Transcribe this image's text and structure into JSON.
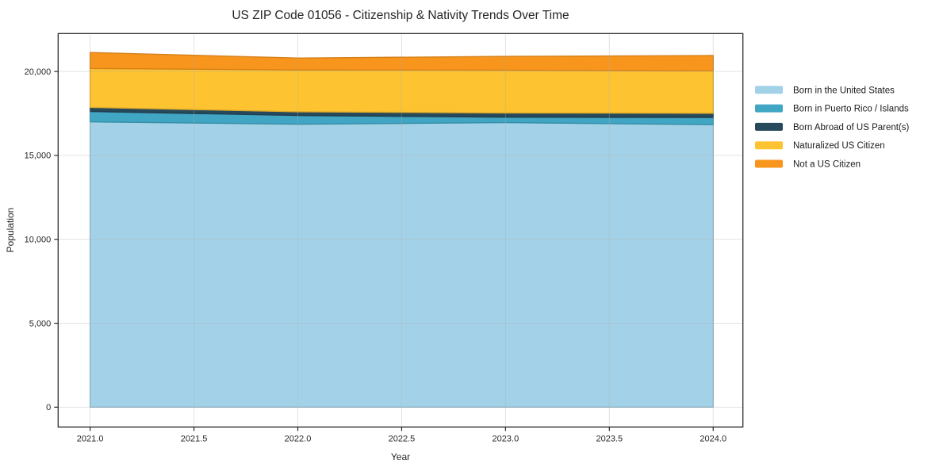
{
  "page": {
    "title": "US ZIP Code 01056 - Citizenship & Nativity Trends Over Time"
  },
  "chart_data": {
    "type": "area",
    "stacked": true,
    "title": "US ZIP Code 01056 - Citizenship & Nativity Trends Over Time",
    "xlabel": "Year",
    "ylabel": "Population",
    "x": [
      2021,
      2022,
      2023,
      2024
    ],
    "series": [
      {
        "name": "Born in the United States",
        "color": "#a3d2e8",
        "values": [
          17000,
          16860,
          16960,
          16830
        ]
      },
      {
        "name": "Born in Puerto Rico / Islands",
        "color": "#40a6c3",
        "values": [
          620,
          520,
          320,
          430
        ]
      },
      {
        "name": "Born Abroad of US Parent(s)",
        "color": "#26495c",
        "values": [
          240,
          220,
          250,
          250
        ]
      },
      {
        "name": "Naturalized US Citizen",
        "color": "#fdc330",
        "values": [
          2320,
          2490,
          2550,
          2530
        ]
      },
      {
        "name": "Not a US Citizen",
        "color": "#f8951d",
        "values": [
          950,
          710,
          820,
          910
        ]
      }
    ],
    "stacked_totals": [
      21130,
      20800,
      20900,
      20950
    ],
    "xticks": [
      2021.0,
      2021.5,
      2022.0,
      2022.5,
      2023.0,
      2023.5,
      2024.0
    ],
    "xtick_labels": [
      "2021.0",
      "2021.5",
      "2022.0",
      "2022.5",
      "2023.0",
      "2023.5",
      "2024.0"
    ],
    "yticks": [
      0,
      5000,
      10000,
      15000,
      20000
    ],
    "ytick_labels": [
      "0",
      "5,000",
      "10,000",
      "15,000",
      "20,000"
    ],
    "xlim": [
      2020.846,
      2024.143
    ],
    "ylim": [
      -1180,
      22260
    ],
    "grid": true,
    "grid_color": "#b0b0b0",
    "axis_color": "#2b2b2b",
    "text_color": "#262626",
    "background_color": "#ffffff",
    "legend_position": "right"
  }
}
